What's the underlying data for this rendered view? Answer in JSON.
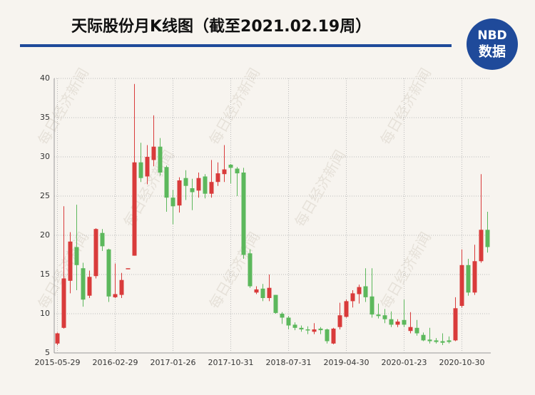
{
  "chart_data": {
    "type": "candlestick",
    "title": "天际股份月K线图（截至2021.02.19周）",
    "logo": {
      "top": "NBD",
      "bottom": "数据"
    },
    "watermark": "每日经济新闻",
    "categories": [
      "2015-05-29",
      null,
      null,
      null,
      null,
      null,
      null,
      null,
      null,
      "2016-02-29",
      null,
      null,
      null,
      null,
      null,
      null,
      null,
      null,
      "2017-01-26",
      null,
      null,
      null,
      null,
      null,
      null,
      null,
      null,
      "2017-10-31",
      null,
      null,
      null,
      null,
      null,
      null,
      null,
      null,
      "2018-07-31",
      null,
      null,
      null,
      null,
      null,
      null,
      null,
      null,
      "2019-04-30",
      null,
      null,
      null,
      null,
      null,
      null,
      null,
      null,
      "2020-01-23",
      null,
      null,
      null,
      null,
      null,
      null,
      null,
      null,
      "2020-10-30",
      null,
      null,
      null,
      null
    ],
    "open": [
      6.2,
      8.2,
      14.2,
      18.5,
      15.8,
      12.3,
      14.8,
      20.3,
      18.2,
      12.1,
      12.4,
      15.8,
      17.4,
      29.3,
      27.5,
      29.6,
      31.3,
      28.7,
      24.8,
      23.8,
      27.3,
      26,
      25.7,
      27.5,
      25.3,
      26.8,
      27.8,
      29,
      28.5,
      28,
      17.7,
      12.7,
      13.2,
      12,
      12.4,
      10,
      9.5,
      8.6,
      8.2,
      8,
      7.7,
      8.1,
      8,
      6.2,
      8.3,
      9.6,
      11.6,
      12.5,
      13.5,
      12.2,
      9.9,
      9.8,
      9.3,
      8.6,
      9.2,
      7.8,
      8.2,
      7.3,
      6.7,
      6.6,
      6.5,
      6.6,
      6.6,
      11,
      16.2,
      12.7,
      16.7,
      20.7
    ],
    "close": [
      7.5,
      14.5,
      19.2,
      16.2,
      11.8,
      14.7,
      20.8,
      18.6,
      12.2,
      12.5,
      14.3,
      15.8,
      29.3,
      27.3,
      30,
      31.3,
      28,
      24.8,
      23.7,
      27,
      26.3,
      25.5,
      27.3,
      25.3,
      26.8,
      27.9,
      28.4,
      28.6,
      27.9,
      17.5,
      13.5,
      13.1,
      12,
      13.3,
      10.1,
      9.5,
      8.5,
      8.2,
      8,
      7.9,
      8,
      7.9,
      6.5,
      8.1,
      9.8,
      11.6,
      12.6,
      13.4,
      12.1,
      9.9,
      9.7,
      9.3,
      8.6,
      9,
      8.6,
      8.3,
      7.5,
      6.6,
      6.5,
      6.4,
      6.3,
      6.4,
      10.7,
      16.2,
      12.7,
      16.7,
      20.7,
      18.5
    ],
    "high": [
      7.6,
      23.7,
      20.4,
      23.9,
      16.5,
      15.5,
      20.9,
      20.8,
      18.3,
      16.4,
      15.2,
      15.8,
      39.3,
      31.8,
      31.5,
      35.3,
      32.4,
      28.9,
      25.8,
      27.4,
      28.3,
      27.2,
      28,
      27.8,
      29.6,
      29.3,
      31.5,
      29.1,
      28.7,
      28.6,
      18.2,
      13.5,
      13.8,
      15,
      12.4,
      10.2,
      9.7,
      8.9,
      8.5,
      8.4,
      8.8,
      8.3,
      8.1,
      8.2,
      11.4,
      11.8,
      13,
      13.7,
      15.8,
      15.8,
      11.3,
      10.6,
      10.3,
      9.3,
      11.8,
      10.2,
      9.2,
      7.6,
      8.2,
      6.9,
      7.5,
      7.1,
      12.1,
      18.2,
      17,
      18.8,
      27.8,
      23
    ],
    "low": [
      6,
      8.1,
      12.6,
      13,
      10.9,
      12,
      14.5,
      18,
      11.5,
      12,
      12,
      15.8,
      17.4,
      26.8,
      26.5,
      28.8,
      27.6,
      23,
      21.4,
      22.9,
      24.5,
      23.2,
      24.8,
      24.7,
      24.8,
      26.3,
      26.8,
      26.6,
      25,
      17,
      13.3,
      12.5,
      11.6,
      11.6,
      10,
      8.7,
      8,
      7.9,
      7.7,
      7.4,
      7.4,
      7.4,
      6.2,
      6.1,
      8,
      9.5,
      10.8,
      11.3,
      11.5,
      9.5,
      9.4,
      8.8,
      8.3,
      8.3,
      8.3,
      7.5,
      7.2,
      6.5,
      6.2,
      6.2,
      6,
      6.2,
      6.5,
      10.8,
      12.3,
      12.4,
      16.5,
      17.8
    ],
    "up_color": "#d93b3b",
    "down_color": "#5cb85c",
    "ylim": [
      5,
      40
    ],
    "yticks": [
      5,
      10,
      15,
      20,
      25,
      30,
      35,
      40
    ],
    "grid": true
  }
}
